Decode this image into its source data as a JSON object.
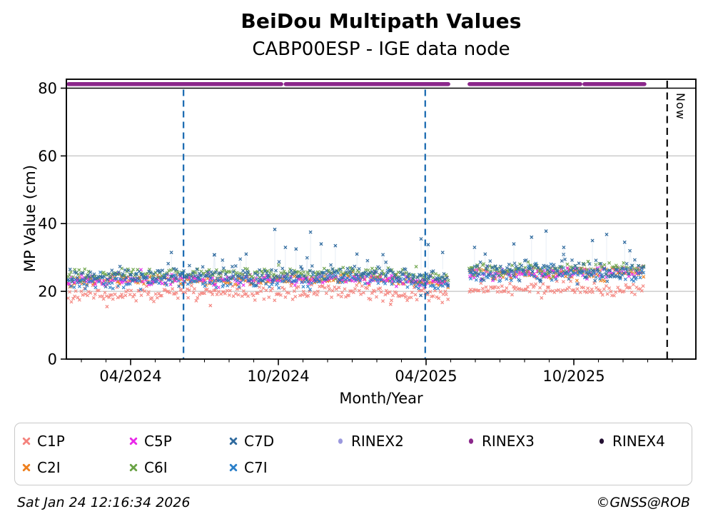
{
  "page": {
    "background": "#ffffff"
  },
  "footer": {
    "timestamp": "Sat Jan 24 12:16:34 2026",
    "credit": "©GNSS@ROB"
  },
  "legend": {
    "items": [
      {
        "label": "C1P",
        "marker": "x",
        "color": "#f4837d"
      },
      {
        "label": "C5P",
        "marker": "x",
        "color": "#e927e9"
      },
      {
        "label": "C7D",
        "marker": "x",
        "color": "#2f6a9e"
      },
      {
        "label": "RINEX2",
        "marker": "dot",
        "color": "#9b99de"
      },
      {
        "label": "RINEX3",
        "marker": "dot",
        "color": "#8b278b"
      },
      {
        "label": "RINEX4",
        "marker": "dot",
        "color": "#241032"
      },
      {
        "label": "C2I",
        "marker": "x",
        "color": "#ee7f1d"
      },
      {
        "label": "C6I",
        "marker": "x",
        "color": "#69a244"
      },
      {
        "label": "C7I",
        "marker": "x",
        "color": "#2a7fc9"
      }
    ]
  },
  "chart_data": {
    "type": "scatter",
    "title": "BeiDou Multipath Values",
    "subtitle": "CABP00ESP - IGE data node",
    "xlabel": "Month/Year",
    "ylabel": "MP Value (cm)",
    "ylim": [
      0,
      82.6
    ],
    "yticks": [
      0,
      20,
      40,
      60,
      80
    ],
    "gridlines_y": [
      20,
      40,
      60
    ],
    "grid_color": "#c3c3c3",
    "top_reference_line_y": 80,
    "xlim_decimal_year": [
      2024.033,
      2026.163
    ],
    "xticks": [
      {
        "t": 2024.25,
        "label": "04/2024"
      },
      {
        "t": 2024.75,
        "label": "10/2024"
      },
      {
        "t": 2025.25,
        "label": "04/2025"
      },
      {
        "t": 2025.75,
        "label": "10/2025"
      }
    ],
    "xminor_step_years": 0.0833333,
    "vlines": [
      {
        "t": 2024.429,
        "color": "#1e6db3",
        "style": "dashed"
      },
      {
        "t": 2025.247,
        "color": "#1e6db3",
        "style": "dashed"
      }
    ],
    "now_line": {
      "t": 2026.066,
      "label": "Now",
      "color": "#111111",
      "style": "dashed"
    },
    "availability_rinex3": {
      "y": 81.2,
      "color": "#8b278b",
      "segments": [
        [
          2024.04,
          2024.76
        ],
        [
          2024.775,
          2025.325
        ],
        [
          2025.397,
          2025.772
        ],
        [
          2025.786,
          2025.989
        ]
      ]
    },
    "data_segments": [
      [
        2024.038,
        2025.325
      ],
      [
        2025.397,
        2025.989
      ]
    ],
    "series": [
      {
        "name": "C1P",
        "color": "#f4837d",
        "marker": "x",
        "mean": [
          19.2,
          20.4
        ],
        "sd": [
          1.05,
          0.95
        ],
        "clamp": [
          15.3,
          23.0
        ]
      },
      {
        "name": "C2I",
        "color": "#ee7f1d",
        "marker": "x",
        "mean": [
          23.0,
          25.2
        ],
        "sd": [
          0.75,
          0.85
        ],
        "clamp": [
          20.5,
          27.5
        ]
      },
      {
        "name": "C5P",
        "color": "#e927e9",
        "marker": "x",
        "mean": [
          23.1,
          25.4
        ],
        "sd": [
          0.85,
          0.9
        ],
        "clamp": [
          20.3,
          27.8
        ]
      },
      {
        "name": "C6I",
        "color": "#69a244",
        "marker": "x",
        "mean": [
          24.9,
          26.4
        ],
        "sd": [
          0.85,
          0.95
        ],
        "clamp": [
          21.5,
          29.0
        ]
      },
      {
        "name": "C7I",
        "color": "#2a7fc9",
        "marker": "x",
        "mean": [
          22.7,
          25.0
        ],
        "sd": [
          1.1,
          1.2
        ],
        "clamp": [
          19.0,
          28.5
        ]
      },
      {
        "name": "C7D",
        "color": "#2f6a9e",
        "marker": "x",
        "mean": [
          24.6,
          26.2
        ],
        "sd": [
          1.3,
          1.5
        ],
        "clamp": [
          20.3,
          30.5
        ],
        "spike_prob": 0.03,
        "spike_add_max": 4.5,
        "connect": true
      }
    ],
    "outliers_high_C7D": [
      [
        2024.388,
        31.5
      ],
      [
        2024.533,
        30.8
      ],
      [
        2024.641,
        31.0
      ],
      [
        2024.738,
        38.3
      ],
      [
        2024.774,
        33.0
      ],
      [
        2024.81,
        32.5
      ],
      [
        2024.859,
        37.5
      ],
      [
        2024.895,
        34.0
      ],
      [
        2024.943,
        33.5
      ],
      [
        2025.016,
        31.0
      ],
      [
        2025.233,
        35.5
      ],
      [
        2025.257,
        33.8
      ],
      [
        2025.306,
        31.5
      ],
      [
        2025.414,
        33.0
      ],
      [
        2025.45,
        31.0
      ],
      [
        2025.547,
        34.0
      ],
      [
        2025.607,
        36.0
      ],
      [
        2025.656,
        37.8
      ],
      [
        2025.716,
        33.0
      ],
      [
        2025.813,
        35.0
      ],
      [
        2025.861,
        36.8
      ],
      [
        2025.922,
        34.5
      ]
    ],
    "outliers_low": {
      "C7D": [
        [
          2025.232,
          18.8
        ],
        [
          2025.255,
          19.6
        ]
      ],
      "C1P": [
        [
          2024.17,
          15.5
        ],
        [
          2024.52,
          15.8
        ],
        [
          2025.13,
          16.2
        ]
      ]
    }
  }
}
